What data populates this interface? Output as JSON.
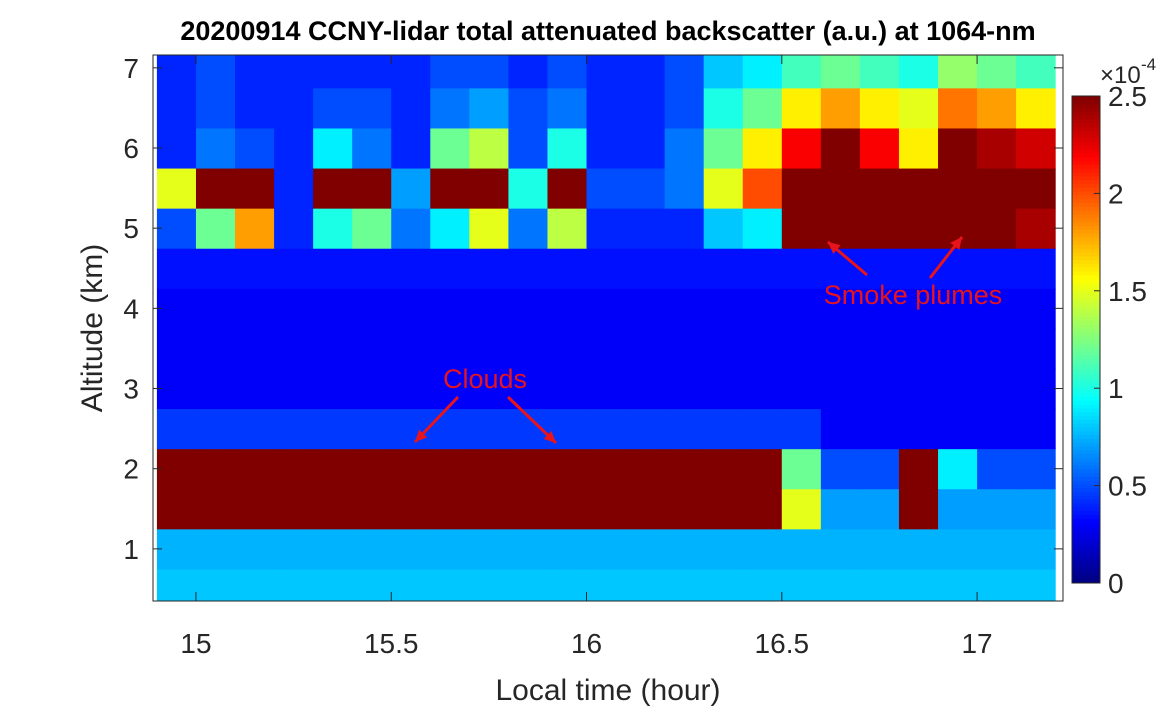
{
  "chart_data": {
    "type": "heatmap",
    "title": "20200914 CCNY-lidar total attenuated backscatter (a.u.) at 1064-nm",
    "x_label": "Local time (hour)",
    "y_label": "Altitude (km)",
    "x": [
      14.95,
      15.05,
      15.15,
      15.25,
      15.35,
      15.45,
      15.55,
      15.65,
      15.75,
      15.85,
      15.95,
      16.05,
      16.15,
      16.25,
      16.35,
      16.45,
      16.55,
      16.65,
      16.75,
      16.85,
      16.95,
      17.05,
      17.15
    ],
    "y": [
      0.5,
      1.0,
      1.5,
      2.0,
      2.5,
      3.0,
      3.5,
      4.0,
      4.5,
      5.0,
      5.5,
      6.0,
      6.5,
      7.0
    ],
    "z": [
      [
        0.8,
        0.8,
        0.8,
        0.8,
        0.8,
        0.8,
        0.8,
        0.8,
        0.8,
        0.8,
        0.8,
        0.8,
        0.8,
        0.8,
        0.8,
        0.8,
        0.8,
        0.8,
        0.8,
        0.8,
        0.8,
        0.8,
        0.8
      ],
      [
        0.75,
        0.75,
        0.75,
        0.75,
        0.75,
        0.75,
        0.75,
        0.75,
        0.75,
        0.75,
        0.75,
        0.75,
        0.75,
        0.75,
        0.75,
        0.75,
        0.75,
        0.75,
        0.75,
        0.75,
        0.75,
        0.75,
        0.75
      ],
      [
        2.5,
        2.5,
        2.5,
        2.5,
        2.5,
        2.5,
        2.5,
        2.5,
        2.5,
        2.5,
        2.5,
        2.5,
        2.5,
        2.5,
        2.5,
        2.5,
        1.5,
        0.7,
        0.7,
        2.5,
        0.7,
        0.7,
        0.7
      ],
      [
        2.5,
        2.5,
        2.5,
        2.5,
        2.5,
        2.5,
        2.5,
        2.5,
        2.5,
        2.5,
        2.5,
        2.5,
        2.5,
        2.5,
        2.5,
        2.5,
        1.2,
        0.5,
        0.5,
        2.5,
        0.9,
        0.5,
        0.5
      ],
      [
        0.45,
        0.45,
        0.45,
        0.45,
        0.45,
        0.45,
        0.45,
        0.45,
        0.45,
        0.45,
        0.45,
        0.45,
        0.45,
        0.45,
        0.45,
        0.45,
        0.45,
        0.3,
        0.3,
        0.3,
        0.3,
        0.3,
        0.3
      ],
      [
        0.3,
        0.3,
        0.3,
        0.3,
        0.3,
        0.3,
        0.3,
        0.3,
        0.3,
        0.3,
        0.3,
        0.3,
        0.3,
        0.3,
        0.3,
        0.3,
        0.3,
        0.3,
        0.3,
        0.3,
        0.3,
        0.3,
        0.3
      ],
      [
        0.3,
        0.3,
        0.3,
        0.3,
        0.3,
        0.3,
        0.3,
        0.3,
        0.3,
        0.3,
        0.3,
        0.3,
        0.3,
        0.3,
        0.3,
        0.3,
        0.3,
        0.3,
        0.3,
        0.3,
        0.3,
        0.3,
        0.3
      ],
      [
        0.3,
        0.3,
        0.3,
        0.3,
        0.3,
        0.3,
        0.3,
        0.3,
        0.3,
        0.3,
        0.3,
        0.3,
        0.3,
        0.3,
        0.3,
        0.3,
        0.3,
        0.3,
        0.3,
        0.3,
        0.3,
        0.3,
        0.3
      ],
      [
        0.35,
        0.35,
        0.35,
        0.35,
        0.35,
        0.35,
        0.35,
        0.35,
        0.35,
        0.35,
        0.35,
        0.35,
        0.35,
        0.35,
        0.35,
        0.35,
        0.35,
        0.35,
        0.35,
        0.35,
        0.35,
        0.35,
        0.35
      ],
      [
        0.5,
        1.2,
        1.8,
        0.4,
        1.0,
        1.2,
        0.6,
        0.9,
        1.5,
        0.6,
        1.4,
        0.4,
        0.4,
        0.4,
        0.8,
        0.9,
        2.5,
        2.5,
        2.5,
        2.5,
        2.5,
        2.5,
        2.4
      ],
      [
        1.5,
        2.5,
        2.5,
        0.4,
        2.5,
        2.5,
        0.7,
        2.5,
        2.5,
        1.0,
        2.5,
        0.5,
        0.5,
        0.6,
        1.5,
        2.0,
        2.5,
        2.5,
        2.5,
        2.5,
        2.5,
        2.5,
        2.5
      ],
      [
        0.4,
        0.6,
        0.5,
        0.4,
        0.9,
        0.6,
        0.4,
        1.2,
        1.4,
        0.5,
        1.0,
        0.4,
        0.4,
        0.6,
        1.2,
        1.6,
        2.2,
        2.5,
        2.2,
        1.6,
        2.5,
        2.4,
        2.3
      ],
      [
        0.4,
        0.5,
        0.4,
        0.4,
        0.5,
        0.5,
        0.4,
        0.6,
        0.7,
        0.5,
        0.6,
        0.4,
        0.4,
        0.5,
        1.0,
        1.2,
        1.6,
        1.8,
        1.6,
        1.5,
        1.9,
        1.8,
        1.6
      ],
      [
        0.4,
        0.5,
        0.4,
        0.4,
        0.4,
        0.4,
        0.4,
        0.5,
        0.5,
        0.4,
        0.5,
        0.4,
        0.4,
        0.5,
        0.8,
        0.9,
        1.1,
        1.2,
        1.1,
        1.0,
        1.3,
        1.2,
        1.1
      ]
    ],
    "xlim": [
      14.89,
      17.22
    ],
    "ylim": [
      0.35,
      7.16
    ],
    "xticks": [
      15,
      15.5,
      16,
      16.5,
      17
    ],
    "yticks": [
      1,
      2,
      3,
      4,
      5,
      6,
      7
    ],
    "colormap": "jet",
    "clim": [
      0,
      2.5
    ],
    "cticks": [
      0,
      0.5,
      1,
      1.5,
      2,
      2.5
    ],
    "colorbar_multiplier": "×10",
    "colorbar_exponent": "-4",
    "annotations": [
      {
        "text": "Clouds",
        "color": "#e8141c"
      },
      {
        "text": "Smoke plumes",
        "color": "#e8141c"
      }
    ]
  }
}
